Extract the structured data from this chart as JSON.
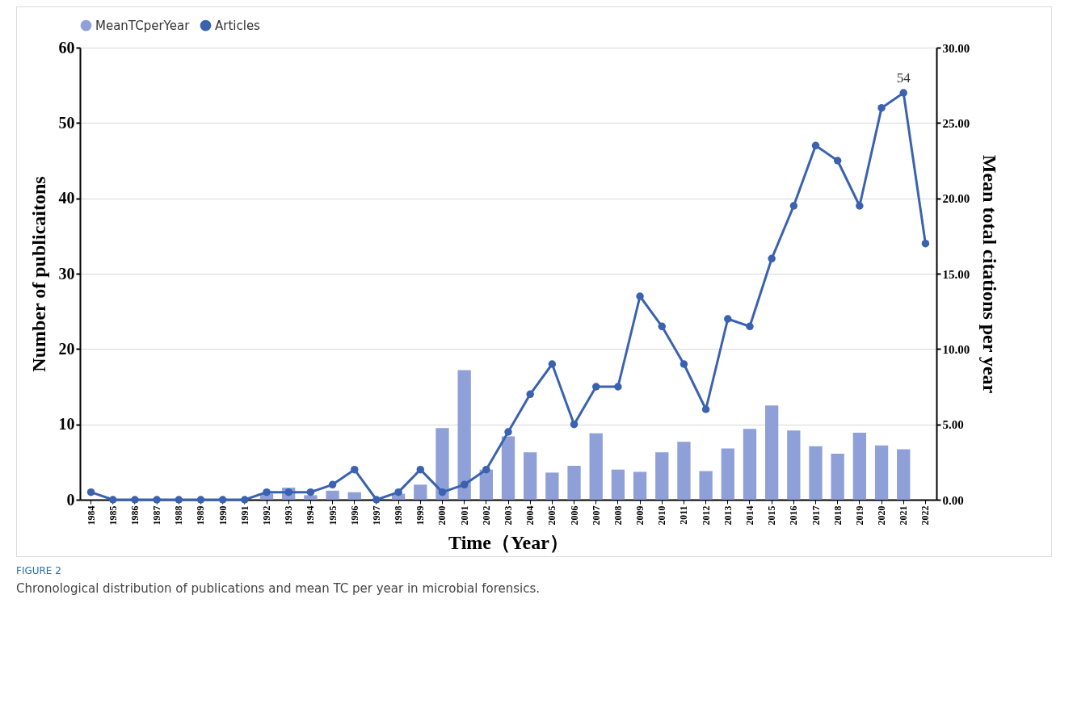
{
  "chart_data": {
    "type": "bar",
    "categories": [
      "1984",
      "1985",
      "1986",
      "1987",
      "1988",
      "1989",
      "1990",
      "1991",
      "1992",
      "1993",
      "1994",
      "1995",
      "1996",
      "1997",
      "1998",
      "1999",
      "2000",
      "2001",
      "2002",
      "2003",
      "2004",
      "2005",
      "2006",
      "2007",
      "2008",
      "2009",
      "2010",
      "2011",
      "2012",
      "2013",
      "2014",
      "2015",
      "2016",
      "2017",
      "2018",
      "2019",
      "2020",
      "2021",
      "2022"
    ],
    "series": [
      {
        "name": "MeanTCperYear",
        "axis": "y2",
        "color": "#8fa0d8",
        "values": [
          0,
          0,
          0,
          0,
          0,
          0,
          0,
          0,
          0.4,
          0.8,
          0.3,
          0.6,
          0.5,
          0,
          0.4,
          1.0,
          4.75,
          8.6,
          2.0,
          4.2,
          3.15,
          1.8,
          2.25,
          4.4,
          2.0,
          1.85,
          3.15,
          3.85,
          1.9,
          3.4,
          4.7,
          6.25,
          4.6,
          3.55,
          3.05,
          4.45,
          3.6,
          3.35,
          null
        ]
      },
      {
        "name": "Articles",
        "type": "line",
        "color": "#3a62b0",
        "values": [
          1,
          0,
          0,
          0,
          0,
          0,
          0,
          0,
          1,
          1,
          1,
          2,
          4,
          0,
          1,
          4,
          1,
          2,
          4,
          9,
          14,
          18,
          10,
          15,
          15,
          27,
          23,
          18,
          12,
          24,
          23,
          32,
          39,
          47,
          45,
          39,
          52,
          54,
          34
        ],
        "value_labels": [
          null,
          null,
          null,
          null,
          null,
          null,
          null,
          null,
          null,
          null,
          null,
          null,
          null,
          null,
          null,
          null,
          null,
          null,
          null,
          null,
          null,
          null,
          null,
          null,
          null,
          null,
          null,
          null,
          null,
          null,
          null,
          null,
          null,
          null,
          null,
          null,
          null,
          "54",
          null
        ]
      }
    ],
    "xlabel": "Time（Year）",
    "ylabel": "Number of publicaitons",
    "y2label": "Mean total citations per year",
    "ylim": [
      0,
      60
    ],
    "yticks": [
      0,
      10,
      20,
      30,
      40,
      50,
      60
    ],
    "y2lim": [
      0,
      30
    ],
    "y2ticks": [
      {
        "value": 0,
        "label": "0.00"
      },
      {
        "value": 5,
        "label": "5.00"
      },
      {
        "value": 10,
        "label": "10.00"
      },
      {
        "value": 15,
        "label": "15.00"
      },
      {
        "value": 20,
        "label": "20.00"
      },
      {
        "value": 25,
        "label": "25.00"
      },
      {
        "value": 30,
        "label": "30.00"
      }
    ],
    "grid": "y",
    "legend": "top",
    "marker": "circle",
    "annotations": [
      "FIGURE 2",
      "Chronological distribution of publications and mean TC per year in microbial forensics."
    ]
  }
}
